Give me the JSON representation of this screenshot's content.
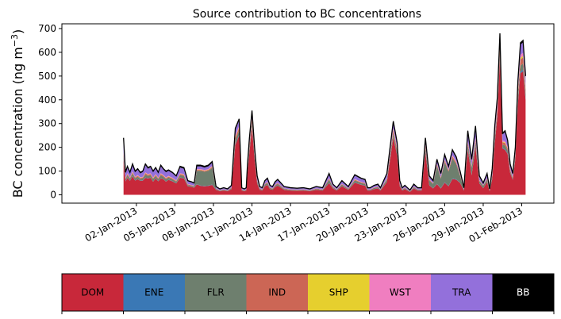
{
  "chart_data": {
    "type": "area",
    "title": "Source contribution to BC concentrations",
    "ylabel": "BC concentration (ng m",
    "ylabel_sup": "−3",
    "ylabel_close": ")",
    "xlabel": "",
    "ylim": [
      -35,
      720
    ],
    "xlim": [
      -4.8,
      33.5
    ],
    "yticks": [
      0,
      100,
      200,
      300,
      400,
      500,
      600,
      700
    ],
    "x_tick_positions": [
      1,
      4,
      7,
      10,
      13,
      16,
      19,
      22,
      25,
      28,
      31
    ],
    "x_tick_labels": [
      "02-Jan-2013",
      "05-Jan-2013",
      "08-Jan-2013",
      "11-Jan-2013",
      "14-Jan-2013",
      "17-Jan-2013",
      "20-Jan-2013",
      "23-Jan-2013",
      "26-Jan-2013",
      "29-Jan-2013",
      "01-Feb-2013"
    ],
    "x_units": "days since 01-Jan-2013",
    "total_x": [
      0,
      0.15,
      0.3,
      0.5,
      0.7,
      0.9,
      1.1,
      1.3,
      1.5,
      1.7,
      1.9,
      2.1,
      2.3,
      2.5,
      2.7,
      2.9,
      3.1,
      3.3,
      3.5,
      3.8,
      4.1,
      4.4,
      4.7,
      5.0,
      5.3,
      5.5,
      5.7,
      6.0,
      6.3,
      6.6,
      6.9,
      7.2,
      7.5,
      7.8,
      8.1,
      8.4,
      8.7,
      9.0,
      9.2,
      9.4,
      9.55,
      9.65,
      9.8,
      10.0,
      10.2,
      10.4,
      10.6,
      10.8,
      11.0,
      11.2,
      11.4,
      11.6,
      11.8,
      12.0,
      12.5,
      13.0,
      13.5,
      14.0,
      14.5,
      15.0,
      15.5,
      16.0,
      16.3,
      16.6,
      17.0,
      17.5,
      18.0,
      18.5,
      18.8,
      19.0,
      19.2,
      19.5,
      19.8,
      20.0,
      20.5,
      21.0,
      21.3,
      21.5,
      21.7,
      21.9,
      22.1,
      22.3,
      22.6,
      22.9,
      23.2,
      23.5,
      23.8,
      24.1,
      24.4,
      24.7,
      25.0,
      25.3,
      25.6,
      25.9,
      26.2,
      26.5,
      26.8,
      27.1,
      27.4,
      27.7,
      28.0,
      28.3,
      28.5,
      28.7,
      28.9,
      29.1,
      29.3,
      29.5,
      29.7,
      29.9,
      30.1,
      30.3,
      30.5,
      30.7,
      30.9,
      31.1,
      31.3
    ],
    "total_y": [
      240,
      95,
      120,
      95,
      130,
      100,
      110,
      95,
      100,
      130,
      115,
      120,
      100,
      115,
      95,
      125,
      110,
      100,
      105,
      95,
      80,
      120,
      115,
      60,
      55,
      50,
      125,
      125,
      120,
      125,
      140,
      35,
      25,
      30,
      25,
      40,
      280,
      320,
      30,
      25,
      30,
      130,
      240,
      355,
      200,
      80,
      35,
      30,
      60,
      70,
      40,
      35,
      55,
      65,
      35,
      30,
      28,
      30,
      25,
      35,
      30,
      90,
      45,
      30,
      60,
      35,
      85,
      70,
      65,
      30,
      30,
      40,
      45,
      30,
      90,
      310,
      220,
      60,
      30,
      40,
      30,
      20,
      45,
      30,
      30,
      240,
      80,
      60,
      150,
      90,
      170,
      120,
      190,
      160,
      100,
      30,
      270,
      150,
      290,
      80,
      50,
      90,
      25,
      110,
      290,
      410,
      680,
      260,
      270,
      230,
      130,
      90,
      200,
      480,
      640,
      650,
      500,
      80,
      125
    ],
    "bb_band": [
      0,
      5,
      5,
      4,
      5,
      5,
      4,
      5,
      4,
      5,
      5,
      4,
      5,
      4,
      5,
      5,
      4,
      5,
      4,
      4,
      3,
      5,
      5,
      3,
      3,
      3,
      5,
      5,
      5,
      5,
      5,
      2,
      2,
      2,
      2,
      2,
      6,
      7,
      2,
      2,
      2,
      5,
      6,
      7,
      5,
      4,
      2,
      2,
      3,
      3,
      2,
      2,
      3,
      3,
      2,
      2,
      2,
      2,
      2,
      2,
      2,
      4,
      3,
      2,
      3,
      2,
      4,
      3,
      3,
      2,
      2,
      2,
      3,
      2,
      4,
      7,
      6,
      3,
      2,
      2,
      2,
      2,
      3,
      2,
      2,
      6,
      4,
      3,
      5,
      4,
      5,
      5,
      6,
      5,
      4,
      2,
      6,
      5,
      6,
      4,
      3,
      4,
      2,
      4,
      6,
      7,
      8,
      6,
      6,
      6,
      5,
      4,
      6,
      7,
      8,
      8,
      7,
      4,
      5
    ],
    "series": [
      {
        "name": "DOM",
        "color": "#C8283A",
        "fractions": [
          0.62,
          0.6,
          0.6,
          0.62,
          0.6,
          0.6,
          0.6,
          0.62,
          0.6,
          0.55,
          0.6,
          0.6,
          0.55,
          0.6,
          0.6,
          0.55,
          0.6,
          0.55,
          0.6,
          0.6,
          0.6,
          0.6,
          0.6,
          0.6,
          0.6,
          0.6,
          0.35,
          0.3,
          0.3,
          0.3,
          0.3,
          0.6,
          0.6,
          0.6,
          0.6,
          0.6,
          0.75,
          0.78,
          0.6,
          0.6,
          0.6,
          0.7,
          0.75,
          0.8,
          0.75,
          0.6,
          0.6,
          0.6,
          0.6,
          0.6,
          0.6,
          0.6,
          0.6,
          0.6,
          0.6,
          0.6,
          0.6,
          0.6,
          0.6,
          0.6,
          0.6,
          0.55,
          0.6,
          0.6,
          0.6,
          0.6,
          0.6,
          0.6,
          0.6,
          0.6,
          0.6,
          0.6,
          0.6,
          0.6,
          0.6,
          0.78,
          0.75,
          0.6,
          0.6,
          0.6,
          0.6,
          0.6,
          0.6,
          0.6,
          0.6,
          0.75,
          0.5,
          0.45,
          0.3,
          0.3,
          0.3,
          0.3,
          0.35,
          0.4,
          0.5,
          0.6,
          0.7,
          0.55,
          0.7,
          0.6,
          0.55,
          0.6,
          0.6,
          0.6,
          0.75,
          0.8,
          0.85,
          0.75,
          0.7,
          0.75,
          0.7,
          0.7,
          0.75,
          0.8,
          0.8,
          0.8,
          0.8,
          0.6,
          0.6
        ]
      },
      {
        "name": "ENE",
        "color": "#3A78B5",
        "fractions": [
          0.01,
          0.01,
          0.01,
          0.01,
          0.01,
          0.01,
          0.01,
          0.01,
          0.01,
          0.01,
          0.01,
          0.01,
          0.01,
          0.01,
          0.01,
          0.01,
          0.01,
          0.01,
          0.01,
          0.01,
          0.01,
          0.01,
          0.01,
          0.01,
          0.01,
          0.01,
          0.01,
          0.01,
          0.01,
          0.01,
          0.01,
          0.01,
          0.01,
          0.01,
          0.01,
          0.01,
          0.01,
          0.01,
          0.01,
          0.01,
          0.01,
          0.01,
          0.01,
          0.01,
          0.01,
          0.01,
          0.01,
          0.01,
          0.01,
          0.01,
          0.01,
          0.01,
          0.01,
          0.01,
          0.01,
          0.01,
          0.01,
          0.01,
          0.01,
          0.01,
          0.01,
          0.01,
          0.01,
          0.01,
          0.01,
          0.01,
          0.01,
          0.01,
          0.01,
          0.01,
          0.01,
          0.01,
          0.01,
          0.01,
          0.01,
          0.01,
          0.01,
          0.01,
          0.01,
          0.01,
          0.01,
          0.01,
          0.01,
          0.01,
          0.01,
          0.01,
          0.01,
          0.01,
          0.01,
          0.01,
          0.01,
          0.01,
          0.01,
          0.01,
          0.01,
          0.01,
          0.01,
          0.01,
          0.01,
          0.01,
          0.01,
          0.01,
          0.01,
          0.01,
          0.01,
          0.01,
          0.01,
          0.01,
          0.01,
          0.01,
          0.01,
          0.01,
          0.01,
          0.01,
          0.01,
          0.01,
          0.01,
          0.01,
          0.01
        ]
      },
      {
        "name": "FLR",
        "color": "#6E7F6E",
        "fractions": [
          0.05,
          0.08,
          0.08,
          0.08,
          0.08,
          0.08,
          0.08,
          0.08,
          0.08,
          0.1,
          0.08,
          0.08,
          0.1,
          0.08,
          0.08,
          0.1,
          0.08,
          0.1,
          0.08,
          0.08,
          0.08,
          0.08,
          0.08,
          0.08,
          0.08,
          0.08,
          0.45,
          0.5,
          0.5,
          0.5,
          0.5,
          0.1,
          0.1,
          0.1,
          0.1,
          0.1,
          0.06,
          0.05,
          0.1,
          0.1,
          0.1,
          0.08,
          0.06,
          0.05,
          0.06,
          0.1,
          0.1,
          0.1,
          0.1,
          0.1,
          0.1,
          0.1,
          0.1,
          0.1,
          0.1,
          0.1,
          0.1,
          0.1,
          0.1,
          0.1,
          0.1,
          0.15,
          0.1,
          0.1,
          0.1,
          0.1,
          0.1,
          0.1,
          0.1,
          0.1,
          0.1,
          0.1,
          0.1,
          0.1,
          0.1,
          0.05,
          0.06,
          0.1,
          0.1,
          0.1,
          0.1,
          0.1,
          0.1,
          0.1,
          0.1,
          0.06,
          0.25,
          0.3,
          0.5,
          0.45,
          0.5,
          0.5,
          0.45,
          0.4,
          0.3,
          0.1,
          0.06,
          0.2,
          0.06,
          0.1,
          0.2,
          0.1,
          0.1,
          0.1,
          0.05,
          0.04,
          0.03,
          0.05,
          0.06,
          0.05,
          0.06,
          0.06,
          0.05,
          0.04,
          0.04,
          0.04,
          0.04,
          0.1,
          0.1
        ]
      },
      {
        "name": "IND",
        "color": "#CC6655",
        "fractions": [
          0.04,
          0.04,
          0.04,
          0.04,
          0.04,
          0.04,
          0.04,
          0.04,
          0.04,
          0.04,
          0.04,
          0.04,
          0.04,
          0.04,
          0.04,
          0.04,
          0.04,
          0.04,
          0.04,
          0.04,
          0.04,
          0.04,
          0.04,
          0.04,
          0.04,
          0.04,
          0.03,
          0.03,
          0.03,
          0.03,
          0.03,
          0.04,
          0.04,
          0.04,
          0.04,
          0.04,
          0.04,
          0.04,
          0.04,
          0.04,
          0.04,
          0.04,
          0.04,
          0.04,
          0.04,
          0.04,
          0.04,
          0.04,
          0.04,
          0.04,
          0.04,
          0.04,
          0.04,
          0.04,
          0.04,
          0.04,
          0.04,
          0.04,
          0.04,
          0.04,
          0.04,
          0.04,
          0.04,
          0.04,
          0.04,
          0.04,
          0.04,
          0.04,
          0.04,
          0.04,
          0.04,
          0.04,
          0.04,
          0.04,
          0.04,
          0.04,
          0.04,
          0.04,
          0.04,
          0.04,
          0.04,
          0.04,
          0.04,
          0.04,
          0.04,
          0.04,
          0.04,
          0.04,
          0.04,
          0.04,
          0.04,
          0.04,
          0.04,
          0.04,
          0.04,
          0.04,
          0.04,
          0.04,
          0.04,
          0.04,
          0.04,
          0.04,
          0.04,
          0.04,
          0.04,
          0.04,
          0.04,
          0.04,
          0.04,
          0.04,
          0.04,
          0.04,
          0.04,
          0.04,
          0.04,
          0.04,
          0.04,
          0.04,
          0.04
        ]
      },
      {
        "name": "SHP",
        "color": "#E6CF2E",
        "fractions": [
          0.01,
          0.01,
          0.01,
          0.01,
          0.01,
          0.01,
          0.01,
          0.01,
          0.01,
          0.01,
          0.01,
          0.01,
          0.01,
          0.01,
          0.01,
          0.01,
          0.01,
          0.01,
          0.01,
          0.01,
          0.01,
          0.01,
          0.01,
          0.01,
          0.01,
          0.01,
          0.01,
          0.01,
          0.01,
          0.01,
          0.01,
          0.01,
          0.01,
          0.01,
          0.01,
          0.01,
          0.01,
          0.01,
          0.01,
          0.01,
          0.01,
          0.01,
          0.01,
          0.01,
          0.01,
          0.01,
          0.01,
          0.01,
          0.01,
          0.01,
          0.01,
          0.01,
          0.01,
          0.01,
          0.01,
          0.01,
          0.01,
          0.01,
          0.01,
          0.01,
          0.01,
          0.01,
          0.01,
          0.01,
          0.01,
          0.01,
          0.01,
          0.01,
          0.01,
          0.01,
          0.01,
          0.01,
          0.01,
          0.01,
          0.01,
          0.01,
          0.01,
          0.01,
          0.01,
          0.01,
          0.01,
          0.01,
          0.01,
          0.01,
          0.01,
          0.01,
          0.01,
          0.01,
          0.01,
          0.01,
          0.01,
          0.01,
          0.01,
          0.01,
          0.01,
          0.01,
          0.01,
          0.01,
          0.01,
          0.01,
          0.01,
          0.01,
          0.01,
          0.01,
          0.01,
          0.01,
          0.01,
          0.01,
          0.01,
          0.01,
          0.01,
          0.01,
          0.01,
          0.01,
          0.01,
          0.01,
          0.01,
          0.01,
          0.01
        ]
      },
      {
        "name": "WST",
        "color": "#F07EC0",
        "fractions": [
          0.02,
          0.02,
          0.02,
          0.02,
          0.02,
          0.02,
          0.02,
          0.02,
          0.02,
          0.02,
          0.02,
          0.02,
          0.02,
          0.02,
          0.02,
          0.02,
          0.02,
          0.02,
          0.02,
          0.02,
          0.02,
          0.02,
          0.02,
          0.02,
          0.02,
          0.02,
          0.02,
          0.02,
          0.02,
          0.02,
          0.02,
          0.02,
          0.02,
          0.02,
          0.02,
          0.02,
          0.02,
          0.02,
          0.02,
          0.02,
          0.02,
          0.02,
          0.02,
          0.02,
          0.02,
          0.02,
          0.02,
          0.02,
          0.02,
          0.02,
          0.02,
          0.02,
          0.02,
          0.02,
          0.02,
          0.02,
          0.02,
          0.02,
          0.02,
          0.02,
          0.02,
          0.02,
          0.02,
          0.02,
          0.02,
          0.02,
          0.02,
          0.02,
          0.02,
          0.02,
          0.02,
          0.02,
          0.02,
          0.02,
          0.02,
          0.02,
          0.02,
          0.02,
          0.02,
          0.02,
          0.02,
          0.02,
          0.02,
          0.02,
          0.02,
          0.02,
          0.02,
          0.02,
          0.02,
          0.02,
          0.02,
          0.02,
          0.02,
          0.02,
          0.02,
          0.02,
          0.02,
          0.02,
          0.02,
          0.02,
          0.02,
          0.02,
          0.02,
          0.02,
          0.02,
          0.02,
          0.02,
          0.02,
          0.02,
          0.02,
          0.02,
          0.02,
          0.02,
          0.02,
          0.02,
          0.02,
          0.02,
          0.02,
          0.02
        ]
      },
      {
        "name": "TRA",
        "color": "#9370DB",
        "fractions": "remainder"
      },
      {
        "name": "BB",
        "color": "#000000",
        "fractions": "thin-top-band"
      }
    ],
    "legend": {
      "placement": "bottom",
      "labels": [
        "DOM",
        "ENE",
        "FLR",
        "IND",
        "SHP",
        "WST",
        "TRA",
        "BB"
      ],
      "colors": [
        "#C8283A",
        "#3A78B5",
        "#6E7F6E",
        "#CC6655",
        "#E6CF2E",
        "#F07EC0",
        "#9370DB",
        "#000000"
      ],
      "text_colors": [
        "#000000",
        "#000000",
        "#000000",
        "#000000",
        "#000000",
        "#000000",
        "#000000",
        "#FFFFFF"
      ]
    },
    "grid": false
  }
}
